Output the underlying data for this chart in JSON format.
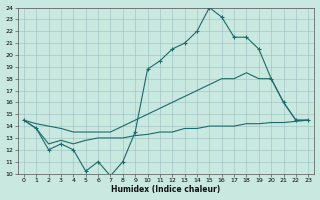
{
  "title": "",
  "xlabel": "Humidex (Indice chaleur)",
  "background_color": "#c8e8e0",
  "grid_color": "#aaaaaa",
  "line_color": "#1a6b6b",
  "xlim": [
    -0.5,
    23.5
  ],
  "ylim": [
    10,
    24
  ],
  "xticks": [
    0,
    1,
    2,
    3,
    4,
    5,
    6,
    7,
    8,
    9,
    10,
    11,
    12,
    13,
    14,
    15,
    16,
    17,
    18,
    19,
    20,
    21,
    22,
    23
  ],
  "yticks": [
    10,
    11,
    12,
    13,
    14,
    15,
    16,
    17,
    18,
    19,
    20,
    21,
    22,
    23,
    24
  ],
  "line1_x": [
    0,
    1,
    2,
    3,
    4,
    5,
    6,
    7,
    8,
    9,
    10,
    11,
    12,
    13,
    14,
    15,
    16,
    17,
    18,
    19,
    20,
    21,
    22,
    23
  ],
  "line1_y": [
    14.5,
    13.8,
    12.0,
    12.5,
    12.0,
    10.2,
    11.0,
    9.8,
    11.0,
    13.5,
    18.8,
    19.5,
    20.5,
    21.0,
    22.0,
    24.0,
    23.2,
    21.5,
    21.5,
    20.5,
    18.0,
    16.0,
    14.5,
    14.5
  ],
  "line2_x": [
    0,
    1,
    2,
    3,
    4,
    5,
    6,
    7,
    8,
    9,
    10,
    11,
    12,
    13,
    14,
    15,
    16,
    17,
    18,
    19,
    20,
    21,
    22,
    23
  ],
  "line2_y": [
    14.5,
    14.2,
    14.0,
    13.8,
    13.5,
    13.5,
    13.5,
    13.5,
    14.0,
    14.5,
    15.0,
    15.5,
    16.0,
    16.5,
    17.0,
    17.5,
    18.0,
    18.0,
    18.5,
    18.0,
    18.0,
    16.0,
    14.5,
    14.5
  ],
  "line3_x": [
    0,
    1,
    2,
    3,
    4,
    5,
    6,
    7,
    8,
    9,
    10,
    11,
    12,
    13,
    14,
    15,
    16,
    17,
    18,
    19,
    20,
    21,
    22,
    23
  ],
  "line3_y": [
    14.5,
    13.8,
    12.5,
    12.8,
    12.5,
    12.8,
    13.0,
    13.0,
    13.0,
    13.2,
    13.3,
    13.5,
    13.5,
    13.8,
    13.8,
    14.0,
    14.0,
    14.0,
    14.2,
    14.2,
    14.3,
    14.3,
    14.4,
    14.5
  ]
}
